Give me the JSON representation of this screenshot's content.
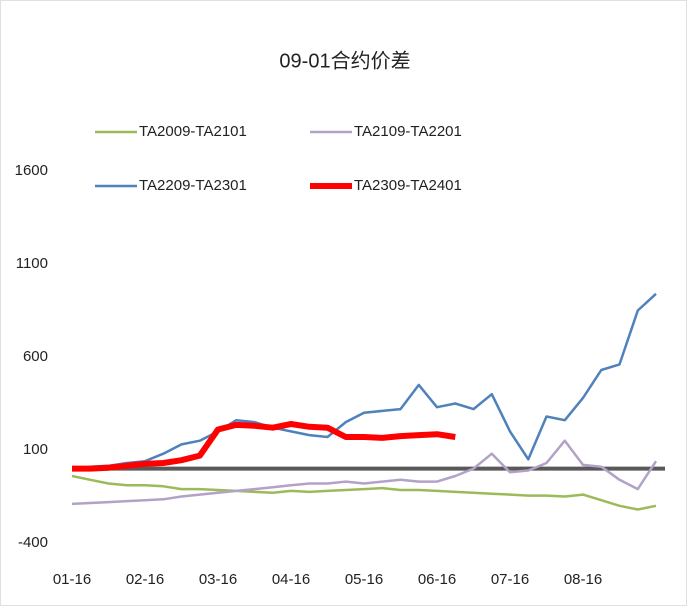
{
  "chart_data": {
    "type": "line",
    "title": "09-01合约价差",
    "categories": [
      "01-16",
      null,
      null,
      null,
      "02-16",
      null,
      null,
      null,
      "03-16",
      null,
      null,
      null,
      "04-16",
      null,
      null,
      null,
      "05-16",
      null,
      null,
      null,
      "06-16",
      null,
      null,
      null,
      "07-16",
      null,
      null,
      null,
      "08-16",
      null,
      null,
      null,
      null
    ],
    "series": [
      {
        "name": "TA2009-TA2101",
        "color": "#9bbb59",
        "width": 2.5,
        "values": [
          -40,
          -60,
          -80,
          -90,
          -90,
          -95,
          -110,
          -110,
          -115,
          -120,
          -125,
          -130,
          -120,
          -125,
          -120,
          -115,
          -110,
          -105,
          -115,
          -115,
          -120,
          -125,
          -130,
          -135,
          -140,
          -145,
          -145,
          -150,
          -140,
          -170,
          -200,
          -220,
          -200
        ]
      },
      {
        "name": "TA2109-TA2201",
        "color": "#b3a2c7",
        "width": 2.5,
        "values": [
          -190,
          -185,
          -180,
          -175,
          -170,
          -165,
          -150,
          -140,
          -130,
          -120,
          -110,
          -100,
          -90,
          -80,
          -80,
          -70,
          -80,
          -70,
          -60,
          -70,
          -70,
          -40,
          0,
          80,
          -20,
          -10,
          30,
          150,
          20,
          10,
          -60,
          -110,
          40
        ]
      },
      {
        "name": "TA2209-TA2301",
        "color": "#4f81bd",
        "width": 2.5,
        "values": [
          0,
          10,
          15,
          30,
          40,
          80,
          130,
          150,
          200,
          260,
          250,
          220,
          200,
          180,
          170,
          250,
          300,
          310,
          320,
          450,
          330,
          350,
          320,
          400,
          200,
          50,
          280,
          260,
          380,
          530,
          560,
          850,
          940
        ]
      },
      {
        "name": "TA2309-TA2401",
        "color": "#ff0000",
        "width": 6,
        "values": [
          0,
          0,
          5,
          15,
          25,
          30,
          45,
          70,
          210,
          235,
          230,
          220,
          240,
          225,
          220,
          170,
          170,
          165,
          175,
          180,
          185,
          170,
          null,
          null,
          null,
          null,
          null,
          null,
          null,
          null,
          null,
          null,
          null
        ]
      }
    ],
    "ylim": [
      -400,
      1600
    ],
    "yticks": [
      -400,
      100,
      600,
      1100,
      1600
    ],
    "grid": false
  }
}
